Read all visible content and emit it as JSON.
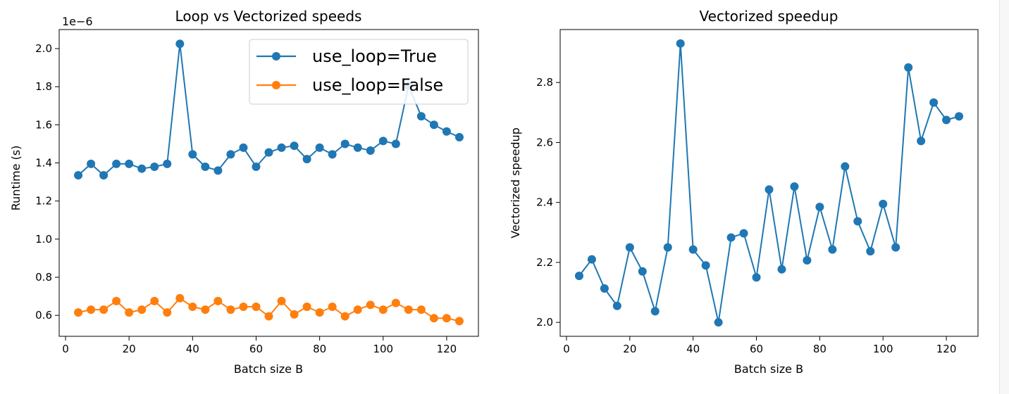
{
  "colors": {
    "series_true": "#1f77b4",
    "series_false": "#ff7f0e",
    "axes": "#000000",
    "background": "#ffffff"
  },
  "chart_data": [
    {
      "type": "line",
      "title": "Loop vs Vectorized speeds",
      "xlabel": "Batch size B",
      "ylabel": "Runtime (s)",
      "offset_text": "1e−6",
      "xlim": [
        -2.0,
        130.0
      ],
      "ylim": [
        0.49,
        2.1
      ],
      "xticks": [
        0,
        20,
        40,
        60,
        80,
        100,
        120
      ],
      "xtick_labels": [
        "0",
        "20",
        "40",
        "60",
        "80",
        "100",
        "120"
      ],
      "yticks": [
        0.6,
        0.8,
        1.0,
        1.2,
        1.4,
        1.6,
        1.8,
        2.0
      ],
      "ytick_labels": [
        "0.6",
        "0.8",
        "1.0",
        "1.2",
        "1.4",
        "1.6",
        "1.8",
        "2.0"
      ],
      "legend": "top-right",
      "grid": false,
      "x": [
        4,
        8,
        12,
        16,
        20,
        24,
        28,
        32,
        36,
        40,
        44,
        48,
        52,
        56,
        60,
        64,
        68,
        72,
        76,
        80,
        84,
        88,
        92,
        96,
        100,
        104,
        108,
        112,
        116,
        120,
        124
      ],
      "series": [
        {
          "name": "use_loop=True",
          "color": "#1f77b4",
          "values": [
            1.335,
            1.395,
            1.335,
            1.395,
            1.395,
            1.37,
            1.38,
            1.395,
            2.025,
            1.445,
            1.38,
            1.36,
            1.445,
            1.48,
            1.38,
            1.455,
            1.48,
            1.49,
            1.42,
            1.48,
            1.445,
            1.5,
            1.48,
            1.465,
            1.515,
            1.5,
            1.805,
            1.645,
            1.6,
            1.565,
            1.535
          ]
        },
        {
          "name": "use_loop=False",
          "color": "#ff7f0e",
          "values": [
            0.615,
            0.63,
            0.63,
            0.675,
            0.615,
            0.63,
            0.675,
            0.615,
            0.69,
            0.645,
            0.63,
            0.675,
            0.63,
            0.645,
            0.645,
            0.595,
            0.675,
            0.605,
            0.645,
            0.615,
            0.645,
            0.595,
            0.63,
            0.655,
            0.63,
            0.665,
            0.63,
            0.63,
            0.585,
            0.585,
            0.57
          ]
        }
      ]
    },
    {
      "type": "line",
      "title": "Vectorized speedup",
      "xlabel": "Batch size B",
      "ylabel": "Vectorized speedup",
      "xlim": [
        -2.0,
        130.0
      ],
      "ylim": [
        1.9535,
        2.9765
      ],
      "xticks": [
        0,
        20,
        40,
        60,
        80,
        100,
        120
      ],
      "xtick_labels": [
        "0",
        "20",
        "40",
        "60",
        "80",
        "100",
        "120"
      ],
      "yticks": [
        2.0,
        2.2,
        2.4,
        2.6,
        2.8
      ],
      "ytick_labels": [
        "2.0",
        "2.2",
        "2.4",
        "2.6",
        "2.8"
      ],
      "legend": "none",
      "grid": false,
      "x": [
        4,
        8,
        12,
        16,
        20,
        24,
        28,
        32,
        36,
        40,
        44,
        48,
        52,
        56,
        60,
        64,
        68,
        72,
        76,
        80,
        84,
        88,
        92,
        96,
        100,
        104,
        108,
        112,
        116,
        120,
        124
      ],
      "series": [
        {
          "color": "#1f77b4",
          "values": [
            2.155,
            2.21,
            2.113,
            2.055,
            2.25,
            2.17,
            2.037,
            2.25,
            2.93,
            2.243,
            2.19,
            2.0,
            2.283,
            2.297,
            2.15,
            2.443,
            2.177,
            2.453,
            2.207,
            2.385,
            2.243,
            2.52,
            2.337,
            2.237,
            2.395,
            2.25,
            2.85,
            2.605,
            2.733,
            2.675,
            2.687
          ]
        }
      ]
    }
  ]
}
